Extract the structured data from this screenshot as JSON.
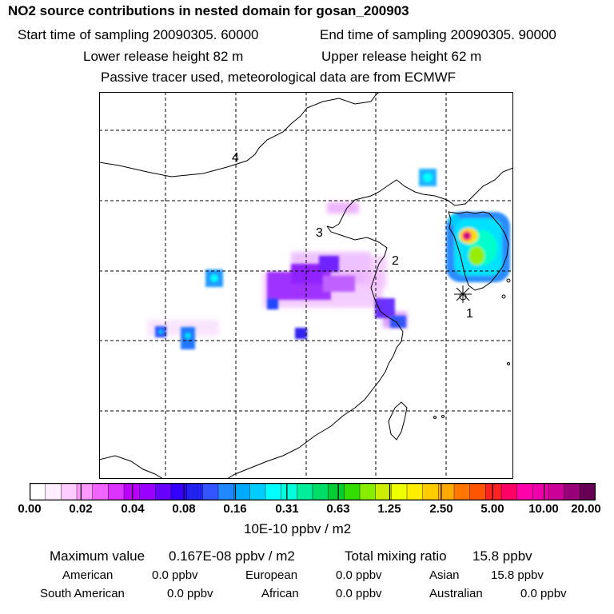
{
  "header": {
    "title": "NO2 source contributions in nested domain for gosan_200903",
    "start_time": "Start time of sampling 20090305. 60000",
    "end_time": "End time of sampling 20090305. 90000",
    "lower_release": "Lower release height   82 m",
    "upper_release": "Upper release height   62 m",
    "note": "Passive tracer used, meteorological data are from ECMWF"
  },
  "map": {
    "region_labels": [
      "1",
      "2",
      "3",
      "4"
    ],
    "receptor": "gosan"
  },
  "legend": {
    "ticks": [
      "0.00",
      "0.02",
      "0.04",
      "0.08",
      "0.16",
      "0.31",
      "0.63",
      "1.25",
      "2.50",
      "5.00",
      "10.00",
      "20.00"
    ],
    "units": "10E-10 ppbv / m2",
    "colors": [
      "#ffffff",
      "#ffeeff",
      "#ffccff",
      "#ff99ff",
      "#ee66ff",
      "#dd33ff",
      "#bb00ff",
      "#9900ff",
      "#6600ff",
      "#3300ff",
      "#2222ee",
      "#3355ff",
      "#2288ff",
      "#00aaff",
      "#00ccff",
      "#00ffff",
      "#00ffdd",
      "#00ee99",
      "#00dd66",
      "#00cc33",
      "#33dd00",
      "#88ee00",
      "#ccee00",
      "#eeff00",
      "#ffee00",
      "#ffcc00",
      "#ffaa00",
      "#ff7700",
      "#ff5500",
      "#ff2222",
      "#ff0066",
      "#ff00aa",
      "#ee00aa",
      "#cc0099",
      "#990077",
      "#660055"
    ]
  },
  "summary": {
    "max_label": "Maximum value",
    "max_value": "0.167E-08 ppbv / m2",
    "total_label": "Total mixing ratio",
    "total_value": "15.8 ppbv",
    "american_label": "American",
    "american": "0.0 ppbv",
    "european_label": "European",
    "european": "0.0 ppbv",
    "asian_label": "Asian",
    "asian": "15.8 ppbv",
    "south_american_label": "South American",
    "south_american": "0.0 ppbv",
    "african_label": "African",
    "african": "0.0 ppbv",
    "australian_label": "Australian",
    "australian": "0.0 ppbv"
  }
}
